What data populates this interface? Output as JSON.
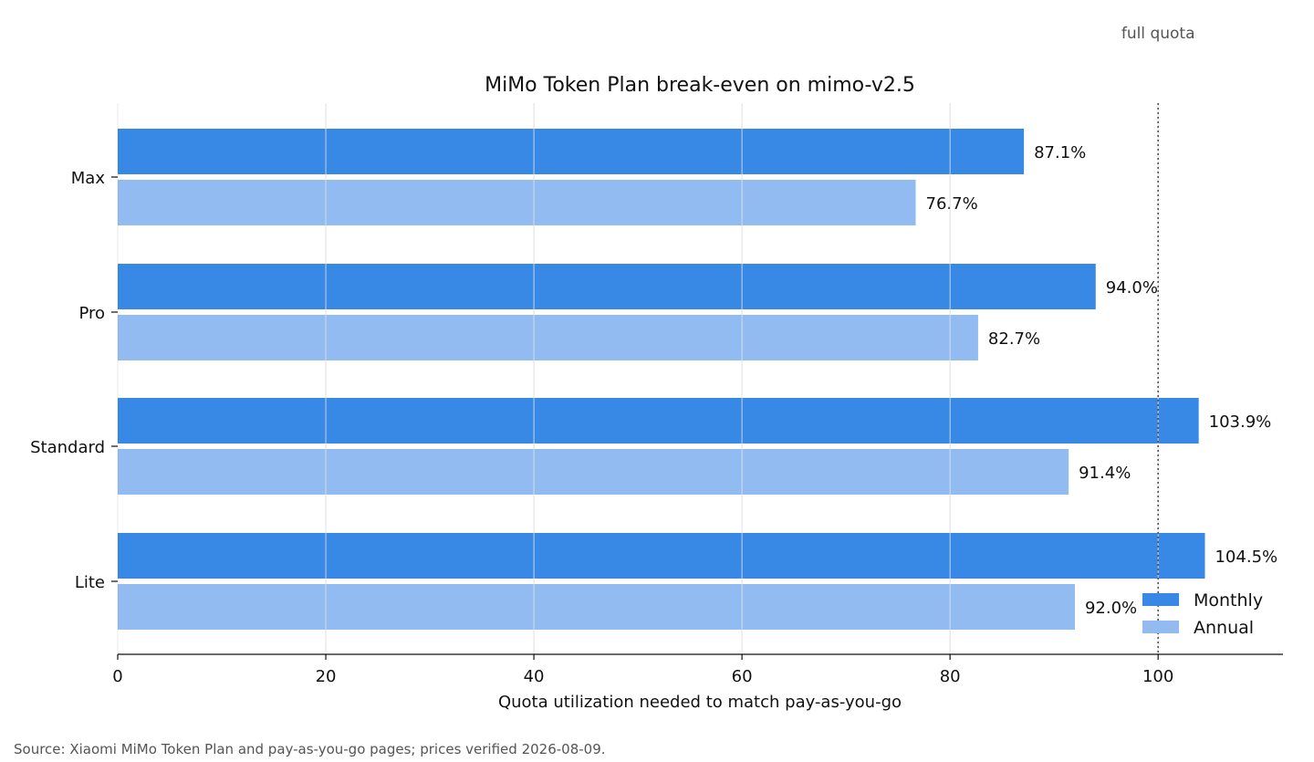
{
  "chart_data": {
    "type": "bar",
    "orientation": "horizontal",
    "title": "MiMo Token Plan break-even on mimo-v2.5",
    "xlabel": "Quota utilization needed to match pay-as-you-go",
    "ylabel": "",
    "categories": [
      "Max",
      "Pro",
      "Standard",
      "Lite"
    ],
    "series": [
      {
        "name": "Monthly",
        "values": [
          87.1,
          94.0,
          103.9,
          104.5
        ],
        "labels": [
          "87.1%",
          "94.0%",
          "103.9%",
          "104.5%"
        ],
        "color": "#3888e6"
      },
      {
        "name": "Annual",
        "values": [
          76.7,
          82.7,
          91.4,
          92.0
        ],
        "labels": [
          "76.7%",
          "82.7%",
          "91.4%",
          "92.0%"
        ],
        "color": "#92bcf1"
      }
    ],
    "xlim": [
      0,
      112
    ],
    "xticks": [
      0,
      20,
      40,
      60,
      80,
      100
    ],
    "grid": "vertical",
    "reference_line": {
      "x": 100,
      "label": "full quota",
      "style": "dotted"
    },
    "legend": "bottom-right"
  },
  "source_note": "Source: Xiaomi MiMo Token Plan and pay-as-you-go pages; prices verified 2026-08-09."
}
